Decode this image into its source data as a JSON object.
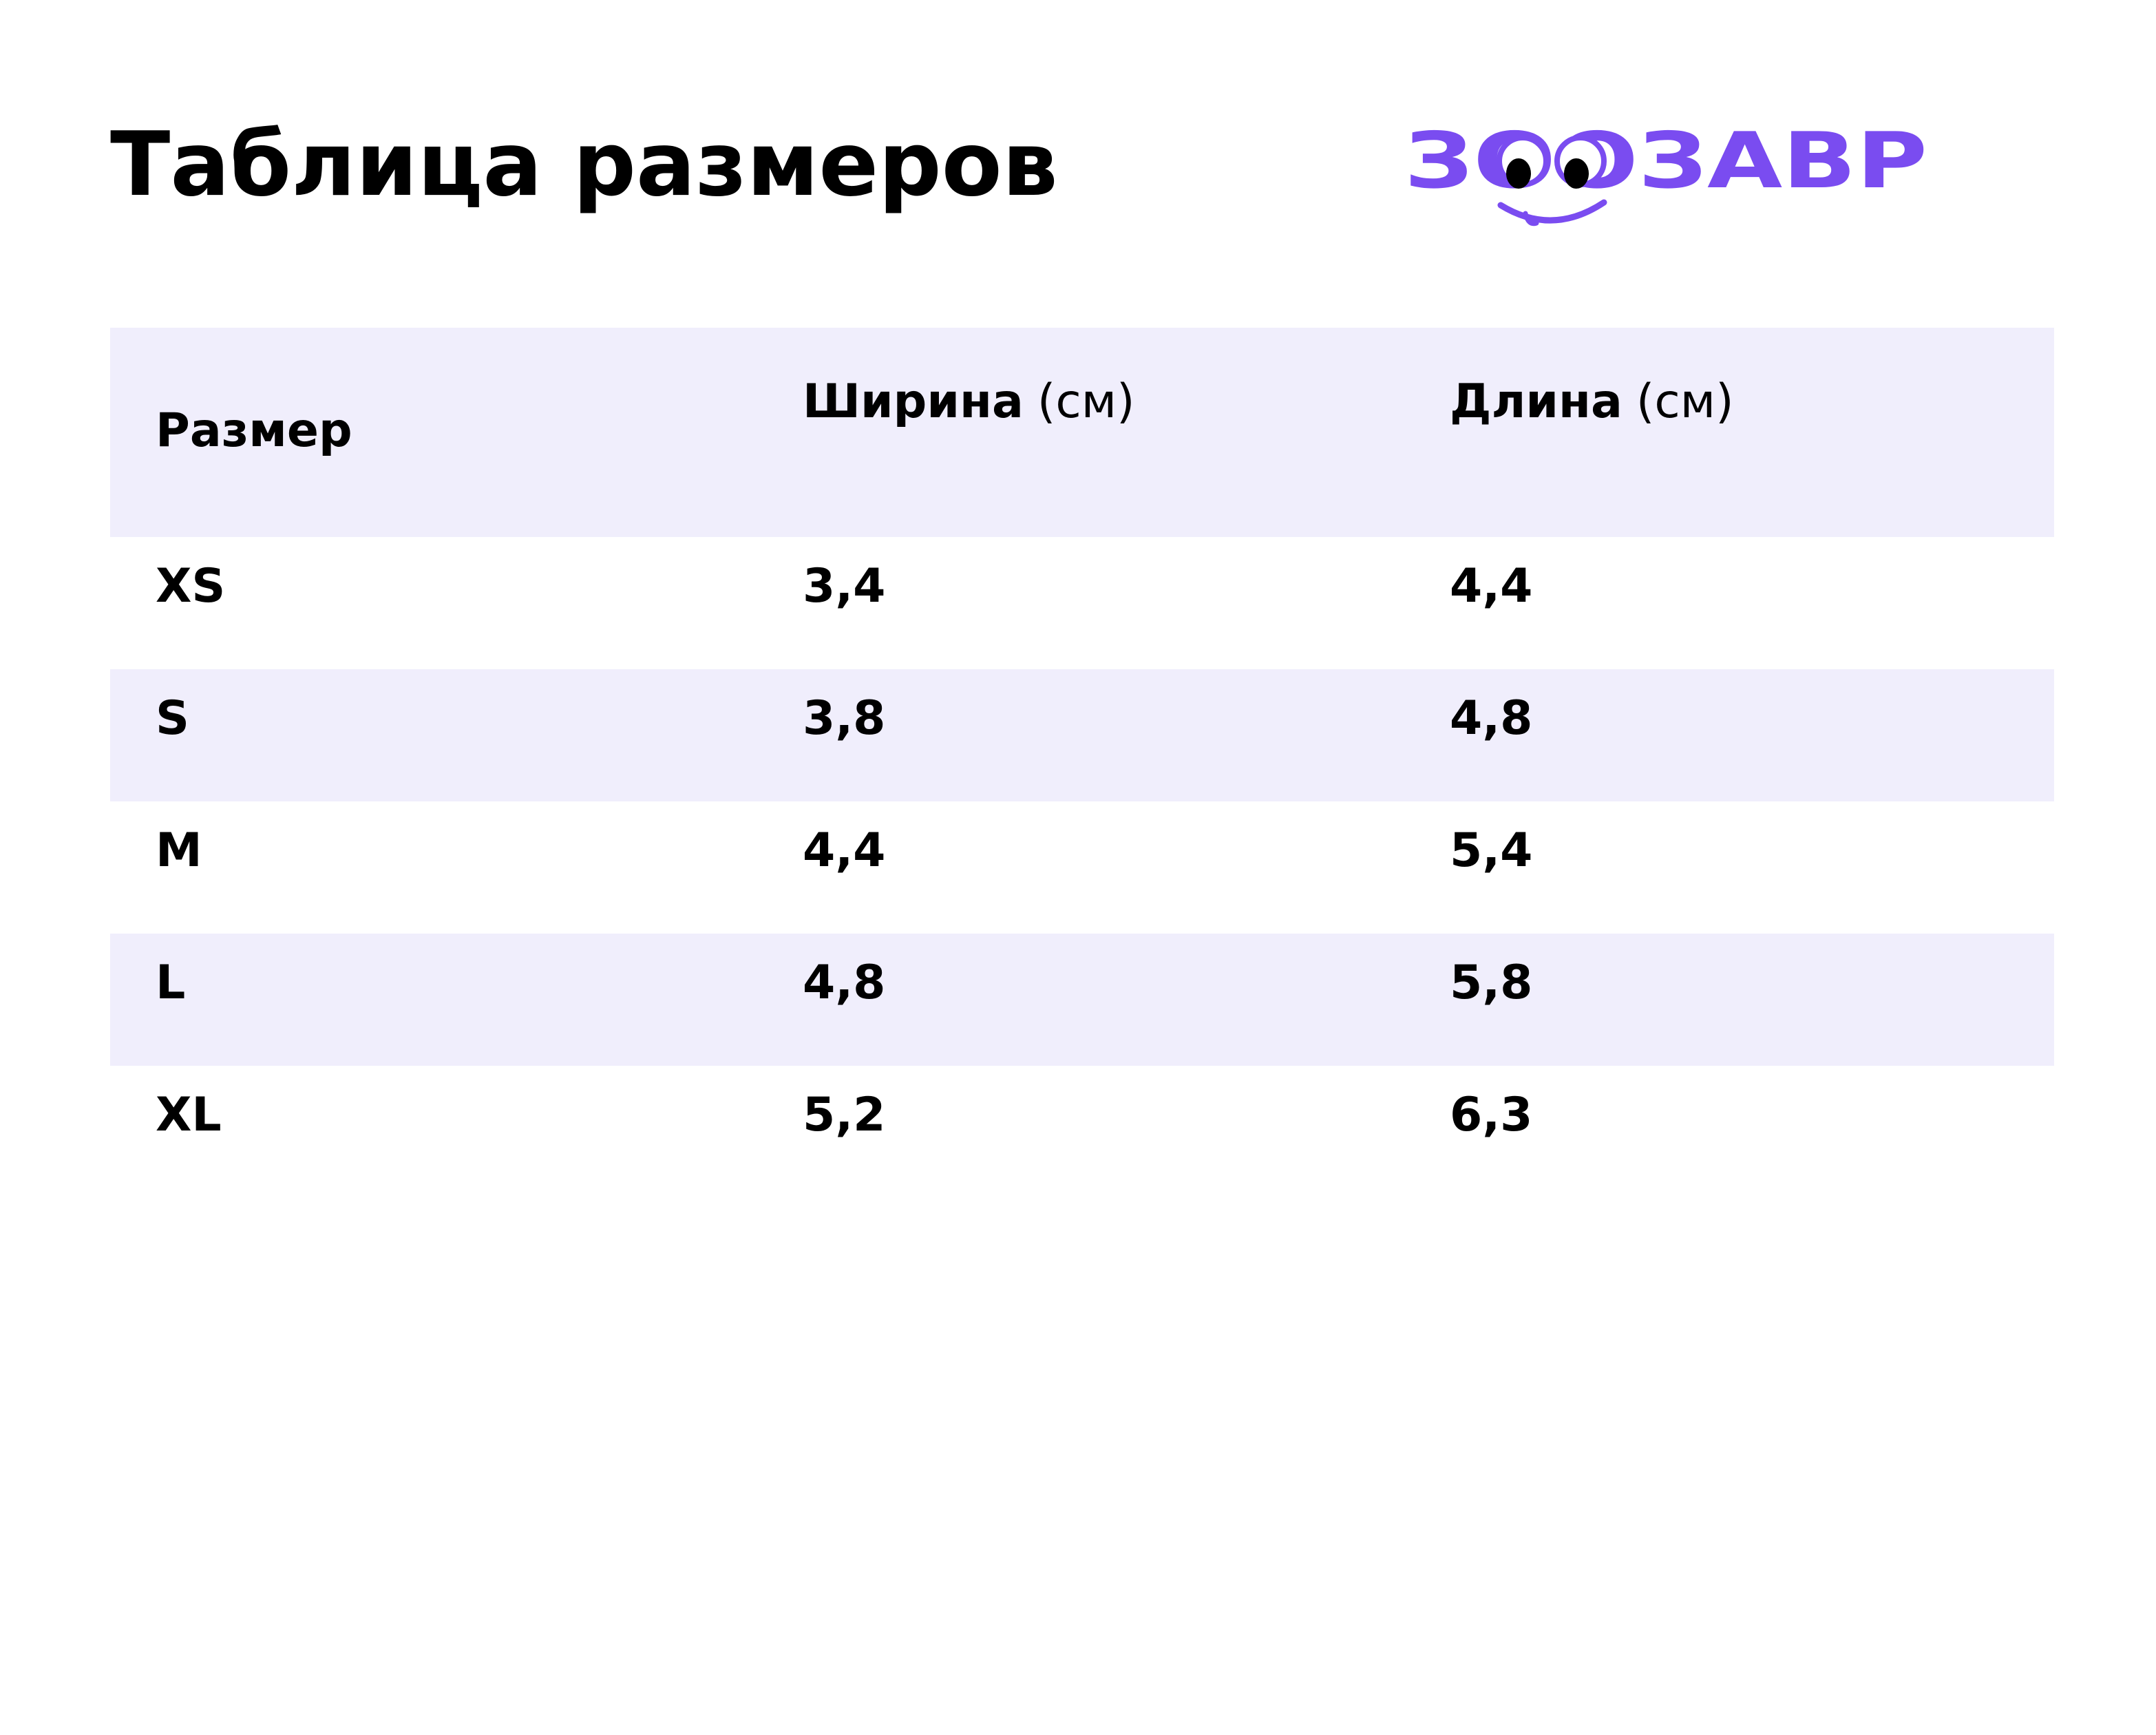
{
  "page": {
    "title": "Таблица размеров"
  },
  "logo": {
    "text": "ЗООЗАВР",
    "icon": "zoozavr-logo-with-eyes-icon",
    "color": "#7a4cf0"
  },
  "colors": {
    "accent": "#7a4cf0",
    "row_shade": "#f0eefc",
    "text": "#000000"
  },
  "table": {
    "headers": [
      {
        "label": "Размер",
        "unit": ""
      },
      {
        "label": "Ширина",
        "unit": "(см)"
      },
      {
        "label": "Длина",
        "unit": "(см)"
      }
    ],
    "rows": [
      {
        "size": "XS",
        "width": "3,4",
        "length": "4,4"
      },
      {
        "size": "S",
        "width": "3,8",
        "length": "4,8"
      },
      {
        "size": "M",
        "width": "4,4",
        "length": "5,4"
      },
      {
        "size": "L",
        "width": "4,8",
        "length": "5,8"
      },
      {
        "size": "XL",
        "width": "5,2",
        "length": "6,3"
      }
    ]
  }
}
